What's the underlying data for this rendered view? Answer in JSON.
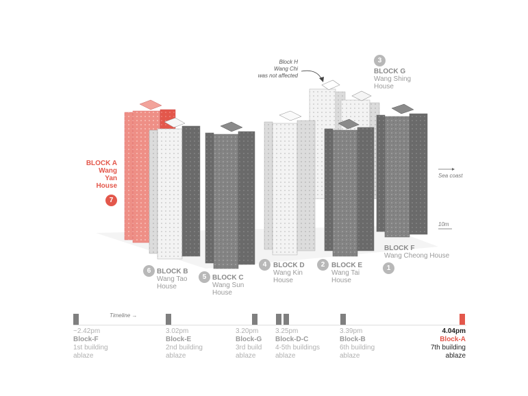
{
  "blocks": {
    "a": {
      "title": "BLOCK A",
      "line1": "Wang",
      "line2": "Yan",
      "line3": "House",
      "number": "7"
    },
    "b": {
      "title": "BLOCK B",
      "name": "Wang Tao",
      "name2": "House",
      "number": "6"
    },
    "c": {
      "title": "BLOCK C",
      "name": "Wang Sun",
      "name2": "House",
      "number": "5"
    },
    "d": {
      "title": "BLOCK D",
      "name": "Wang Kin",
      "name2": "House",
      "number": "4"
    },
    "e": {
      "title": "BLOCK E",
      "name": "Wang Tai",
      "name2": "House",
      "number": "2"
    },
    "f": {
      "title": "BLOCK F",
      "name": "Wang Cheong House",
      "number": "1"
    },
    "g": {
      "title": "BLOCK G",
      "name": "Wang Shing",
      "name2": "House",
      "number": "3"
    }
  },
  "notes": {
    "block_h": {
      "line1": "Block H",
      "line2": "Wang Chi",
      "line3": "was not affected"
    },
    "sea_coast": "Sea coast",
    "scale": "10m"
  },
  "timeline": {
    "caption": "Timeline",
    "events": [
      {
        "time": "~2.42pm",
        "block": "Block-F",
        "desc1": "1st building",
        "desc2": "ablaze"
      },
      {
        "time": "3.02pm",
        "block": "Block-E",
        "desc1": "2nd building",
        "desc2": "ablaze"
      },
      {
        "time": "3.20pm",
        "block": "Block-G",
        "desc1": "3rd build",
        "desc2": "ablaze"
      },
      {
        "time": "3.25pm",
        "block": "Block-D-C",
        "desc1": "4-5th buildings",
        "desc2": "ablaze"
      },
      {
        "time": "3.39pm",
        "block": "Block-B",
        "desc1": "6th building",
        "desc2": "ablaze"
      },
      {
        "time": "4.04pm",
        "block": "Block-A",
        "desc1": "7th building",
        "desc2": "ablaze"
      }
    ]
  },
  "colors": {
    "fire": "#e3574b",
    "burnt": "#7f7f7f",
    "unburnt": "#f2f2f2"
  }
}
